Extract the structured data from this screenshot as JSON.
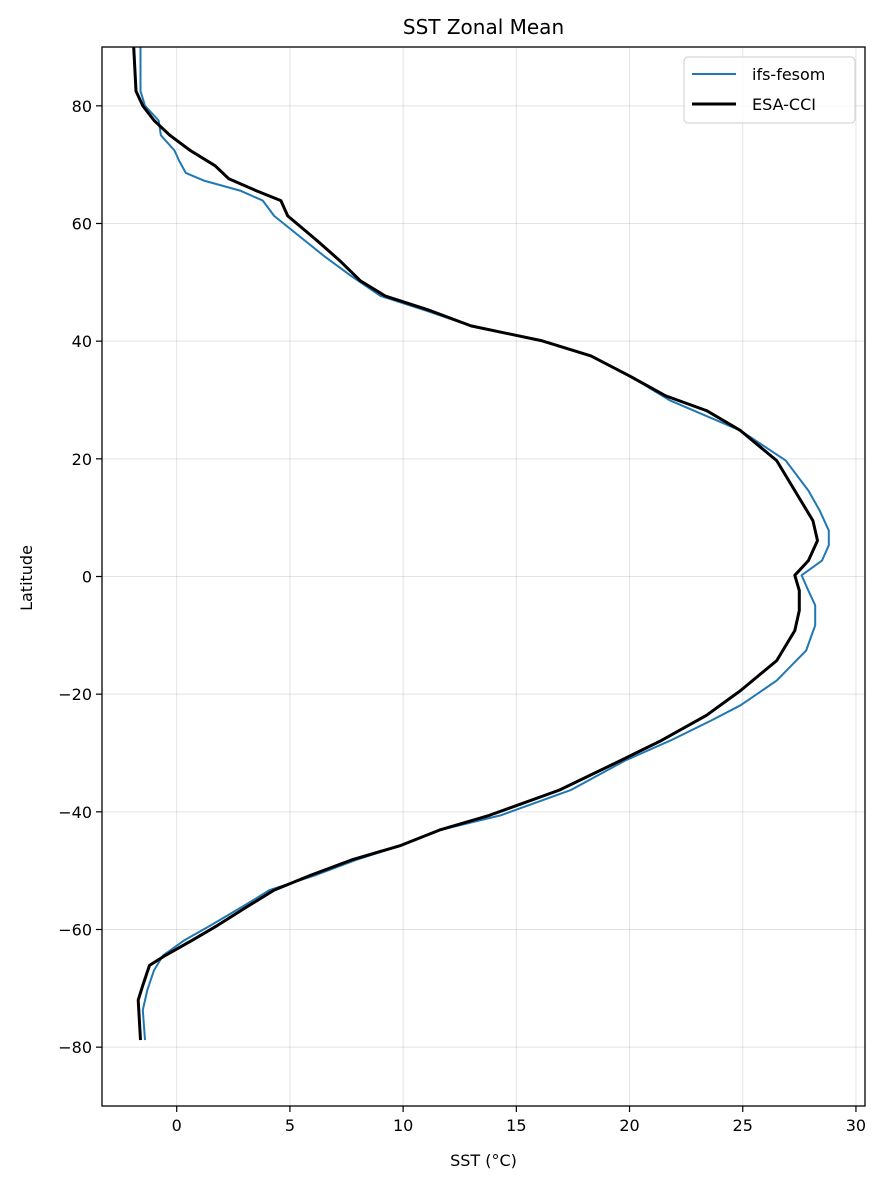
{
  "chart_data": {
    "type": "line",
    "title": "SST Zonal Mean",
    "xlabel": "SST (°C)",
    "ylabel": "Latitude",
    "xlim": [
      -3.3,
      30.4
    ],
    "ylim": [
      -90,
      90
    ],
    "xticks": [
      0,
      5,
      10,
      15,
      20,
      25,
      30
    ],
    "yticks": [
      -80,
      -60,
      -40,
      -20,
      0,
      20,
      40,
      60,
      80
    ],
    "xtick_labels": [
      "0",
      "5",
      "10",
      "15",
      "20",
      "25",
      "30"
    ],
    "ytick_labels": [
      "−80",
      "−60",
      "−40",
      "−20",
      "0",
      "20",
      "40",
      "60",
      "80"
    ],
    "grid": true,
    "legend_position": "top-right",
    "series": [
      {
        "name": "ifs-fesom",
        "color": "#1f77b4",
        "points": [
          [
            -1.6,
            90
          ],
          [
            -1.6,
            82.5
          ],
          [
            -1.4,
            80
          ],
          [
            -0.8,
            77.5
          ],
          [
            -0.7,
            75
          ],
          [
            -0.1,
            72.4
          ],
          [
            0.1,
            70.7
          ],
          [
            0.4,
            68.6
          ],
          [
            1.2,
            67.3
          ],
          [
            2.8,
            65.6
          ],
          [
            3.8,
            63.9
          ],
          [
            4.3,
            61.3
          ],
          [
            5.4,
            57.9
          ],
          [
            6.5,
            54.5
          ],
          [
            7.7,
            51.1
          ],
          [
            9.0,
            47.7
          ],
          [
            11.0,
            45.2
          ],
          [
            13.0,
            42.6
          ],
          [
            16.1,
            40.1
          ],
          [
            18.3,
            37.5
          ],
          [
            20.0,
            34.1
          ],
          [
            21.8,
            29.9
          ],
          [
            24.9,
            24.8
          ],
          [
            26.9,
            19.7
          ],
          [
            27.9,
            14.6
          ],
          [
            28.4,
            11.2
          ],
          [
            28.8,
            7.8
          ],
          [
            28.8,
            5.3
          ],
          [
            28.5,
            2.7
          ],
          [
            27.6,
            0.2
          ],
          [
            27.9,
            -2.4
          ],
          [
            28.2,
            -4.9
          ],
          [
            28.2,
            -8.3
          ],
          [
            27.8,
            -12.6
          ],
          [
            26.5,
            -17.7
          ],
          [
            24.9,
            -21.9
          ],
          [
            23.6,
            -24.5
          ],
          [
            21.8,
            -27.9
          ],
          [
            19.8,
            -31.3
          ],
          [
            17.4,
            -36.3
          ],
          [
            14.3,
            -40.6
          ],
          [
            11.6,
            -43.1
          ],
          [
            9.9,
            -45.7
          ],
          [
            7.9,
            -48.2
          ],
          [
            6.1,
            -50.8
          ],
          [
            4.1,
            -53.3
          ],
          [
            3.0,
            -55.9
          ],
          [
            1.5,
            -59.3
          ],
          [
            0.35,
            -61.8
          ],
          [
            -0.6,
            -64.4
          ],
          [
            -1.0,
            -66.9
          ],
          [
            -1.3,
            -70.3
          ],
          [
            -1.5,
            -73.7
          ],
          [
            -1.4,
            -78.8
          ]
        ]
      },
      {
        "name": "ESA-CCI",
        "color": "#000000",
        "points": [
          [
            -1.9,
            90
          ],
          [
            -1.8,
            82.5
          ],
          [
            -1.5,
            80
          ],
          [
            -1.0,
            77.5
          ],
          [
            -0.3,
            75
          ],
          [
            0.6,
            72.4
          ],
          [
            1.7,
            69.8
          ],
          [
            2.3,
            67.6
          ],
          [
            3.5,
            65.6
          ],
          [
            4.6,
            63.9
          ],
          [
            4.9,
            61.3
          ],
          [
            6.2,
            57.1
          ],
          [
            7.2,
            53.7
          ],
          [
            8.1,
            50.3
          ],
          [
            9.2,
            47.7
          ],
          [
            11.2,
            45.2
          ],
          [
            13.0,
            42.6
          ],
          [
            16.1,
            40.1
          ],
          [
            18.3,
            37.5
          ],
          [
            20.0,
            34.1
          ],
          [
            21.6,
            30.7
          ],
          [
            23.4,
            28.2
          ],
          [
            24.9,
            24.8
          ],
          [
            26.5,
            19.7
          ],
          [
            27.3,
            14.6
          ],
          [
            28.1,
            9.5
          ],
          [
            28.3,
            6.1
          ],
          [
            27.9,
            2.7
          ],
          [
            27.3,
            0.2
          ],
          [
            27.5,
            -2.4
          ],
          [
            27.5,
            -5.8
          ],
          [
            27.3,
            -9.2
          ],
          [
            26.5,
            -14.3
          ],
          [
            24.9,
            -19.4
          ],
          [
            23.4,
            -23.6
          ],
          [
            21.4,
            -27.9
          ],
          [
            19.6,
            -31.3
          ],
          [
            16.9,
            -36.3
          ],
          [
            13.8,
            -40.6
          ],
          [
            11.6,
            -43.1
          ],
          [
            9.9,
            -45.7
          ],
          [
            7.7,
            -48.2
          ],
          [
            5.9,
            -50.8
          ],
          [
            4.3,
            -53.3
          ],
          [
            3.2,
            -55.9
          ],
          [
            1.8,
            -59.3
          ],
          [
            0.7,
            -61.8
          ],
          [
            -0.5,
            -64.4
          ],
          [
            -1.2,
            -66.1
          ],
          [
            -1.5,
            -69.5
          ],
          [
            -1.7,
            -72
          ],
          [
            -1.6,
            -78.8
          ]
        ]
      }
    ]
  }
}
